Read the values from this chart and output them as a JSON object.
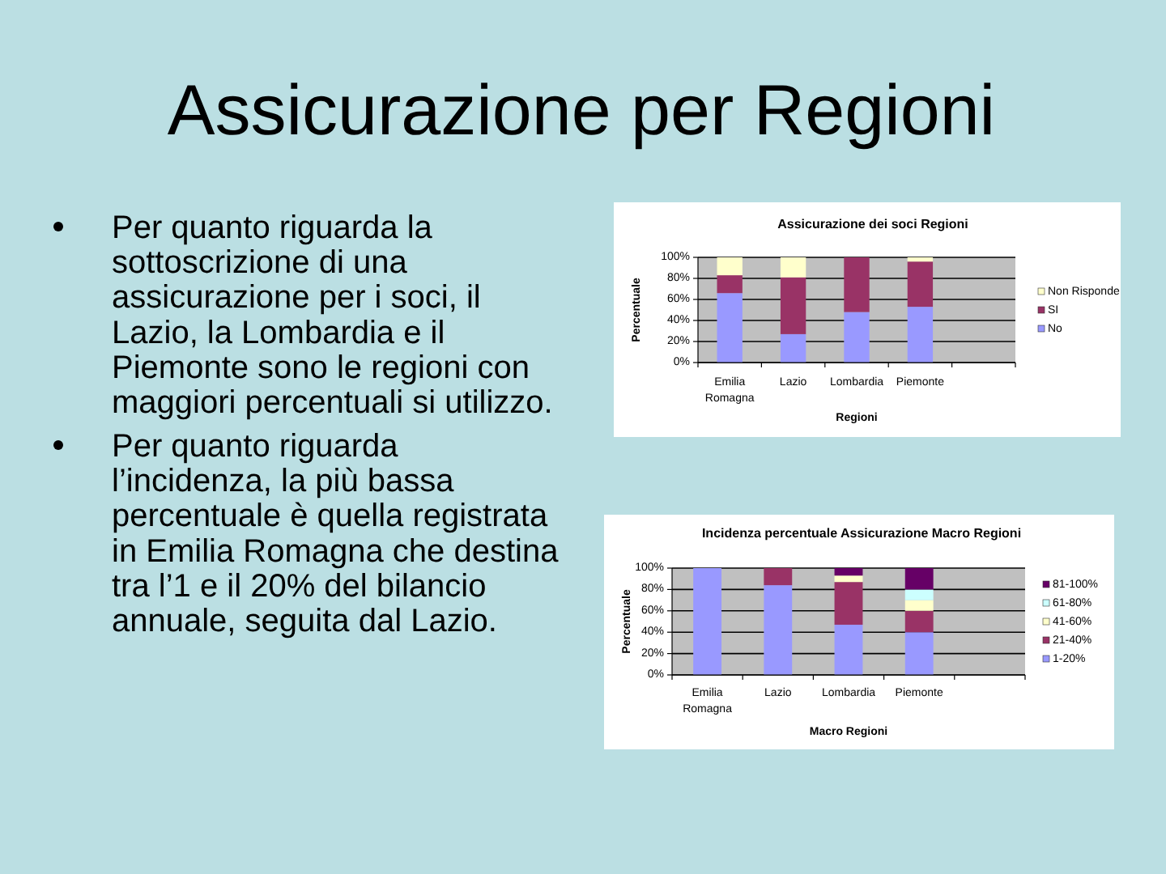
{
  "chart_data": [
    {
      "type": "other",
      "title": "Assicurazione per Regioni",
      "annotations": [
        "Per quanto riguarda la sottoscrizione di una assicurazione per i soci, il Lazio, la Lombardia e il Piemonte sono le regioni con maggiori percentuali si utilizzo.",
        "Per quanto riguarda l’incidenza, la più bassa percentuale è quella registrata in Emilia Romagna che destina tra l’1 e il 20% del bilancio annuale, seguita dal Lazio."
      ]
    },
    {
      "type": "bar",
      "stacked": true,
      "title": "Assicurazione dei soci Regioni",
      "xlabel": "Regioni",
      "ylabel": "Percentuale",
      "categories": [
        "Emilia Romagna",
        "Lazio",
        "Lombardia",
        "Piemonte",
        null
      ],
      "series": [
        {
          "name": "No",
          "color": "#9999ff",
          "values": [
            66,
            27,
            48,
            53,
            null
          ]
        },
        {
          "name": "SI",
          "color": "#993366",
          "values": [
            17,
            54,
            52,
            43,
            null
          ]
        },
        {
          "name": "Non Risponde",
          "color": "#ffffcc",
          "values": [
            17,
            19,
            0,
            4,
            null
          ]
        }
      ],
      "ylim": [
        0,
        100
      ],
      "yticks": [
        {
          "value": 0,
          "label": "0%"
        },
        {
          "value": 20,
          "label": "20%"
        },
        {
          "value": 40,
          "label": "40%"
        },
        {
          "value": 60,
          "label": "60%"
        },
        {
          "value": 80,
          "label": "80%"
        },
        {
          "value": 100,
          "label": "100%"
        }
      ],
      "grid": "y",
      "legend": "right"
    },
    {
      "type": "bar",
      "stacked": true,
      "title": "Incidenza percentuale Assicurazione Macro Regioni",
      "xlabel": "Macro Regioni",
      "ylabel": "Percentuale",
      "categories": [
        "Emilia Romagna",
        "Lazio",
        "Lombardia",
        "Piemonte",
        null
      ],
      "series": [
        {
          "name": "1-20%",
          "color": "#9999ff",
          "values": [
            100,
            84,
            47,
            40,
            null
          ]
        },
        {
          "name": "21-40%",
          "color": "#993366",
          "values": [
            0,
            16,
            40,
            20,
            null
          ]
        },
        {
          "name": "41-60%",
          "color": "#ffffcc",
          "values": [
            0,
            0,
            6,
            10,
            null
          ]
        },
        {
          "name": "61-80%",
          "color": "#ccffff",
          "values": [
            0,
            0,
            0,
            10,
            null
          ]
        },
        {
          "name": "81-100%",
          "color": "#660066",
          "values": [
            0,
            0,
            7,
            20,
            null
          ]
        }
      ],
      "ylim": [
        0,
        100
      ],
      "yticks": [
        {
          "value": 0,
          "label": "0%"
        },
        {
          "value": 20,
          "label": "20%"
        },
        {
          "value": 40,
          "label": "40%"
        },
        {
          "value": 60,
          "label": "60%"
        },
        {
          "value": 80,
          "label": "80%"
        },
        {
          "value": 100,
          "label": "100%"
        }
      ],
      "grid": "y",
      "legend": "right"
    }
  ]
}
